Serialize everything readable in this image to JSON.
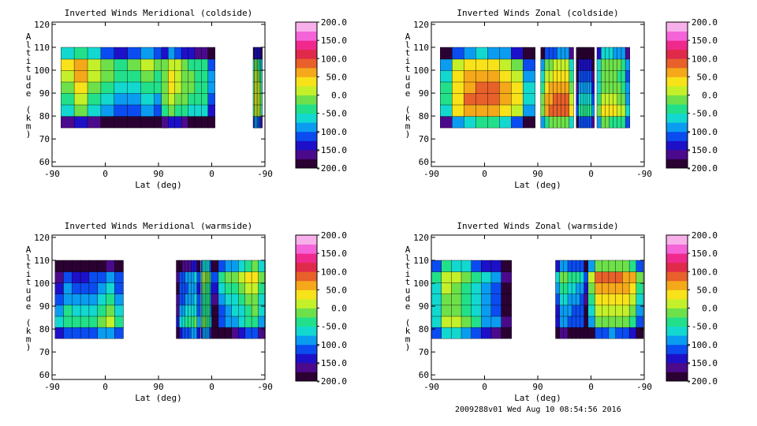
{
  "chart_data": [
    {
      "type": "heatmap",
      "title": "Inverted Winds Meridional (coldside)",
      "xlabel": "Lat (deg)",
      "ylabel": "Altitude (km)",
      "xticklabels": [
        "-90",
        "0",
        "90",
        "0",
        "-90"
      ],
      "yticks": [
        60,
        70,
        80,
        90,
        100,
        110,
        120
      ],
      "ylim": [
        58,
        121
      ],
      "colorbar_ticks": [
        "200.0",
        "150.0",
        "100.0",
        "50.0",
        "0.0",
        "-50.0",
        "-100.0",
        "-150.0",
        "-200.0"
      ],
      "colorbar_range": [
        -200,
        200
      ],
      "lat_segments": [
        [
          -75,
          105
        ],
        [
          95,
          185
        ],
        [
          250,
          265
        ]
      ],
      "alt_range": [
        75,
        110
      ]
    },
    {
      "type": "heatmap",
      "title": "Inverted Winds Zonal (coldside)",
      "xlabel": "Lat (deg)",
      "ylabel": "Altitude (km)",
      "xticklabels": [
        "-90",
        "0",
        "90",
        "0",
        "-90"
      ],
      "yticks": [
        60,
        70,
        80,
        90,
        100,
        110,
        120
      ],
      "ylim": [
        58,
        121
      ],
      "colorbar_ticks": [
        "200.0",
        "150.0",
        "100.0",
        "50.0",
        "0.0",
        "-50.0",
        "-100.0",
        "-150.0",
        "-200.0"
      ],
      "colorbar_range": [
        -200,
        200
      ],
      "lat_segments": [
        [
          -75,
          85
        ],
        [
          95,
          150
        ],
        [
          155,
          185
        ],
        [
          190,
          245
        ]
      ],
      "alt_range": [
        75,
        110
      ]
    },
    {
      "type": "heatmap",
      "title": "Inverted Winds Meridional (warmside)",
      "xlabel": "Lat (deg)",
      "ylabel": "Altitude (km)",
      "xticklabels": [
        "-90",
        "0",
        "90",
        "0",
        "-90"
      ],
      "yticks": [
        60,
        70,
        80,
        90,
        100,
        110,
        120
      ],
      "ylim": [
        58,
        121
      ],
      "colorbar_ticks": [
        "200.0",
        "150.0",
        "100.0",
        "50.0",
        "0.0",
        "-50.0",
        "-100.0",
        "-150.0",
        "-200.0"
      ],
      "colorbar_range": [
        -200,
        200
      ],
      "lat_segments": [
        [
          -85,
          30
        ],
        [
          120,
          160
        ],
        [
          162,
          180
        ],
        [
          180,
          270
        ]
      ],
      "alt_range": [
        76,
        110
      ]
    },
    {
      "type": "heatmap",
      "title": "Inverted Winds Zonal (warmside)",
      "xlabel": "Lat (deg)",
      "ylabel": "Altitude (km)",
      "xticklabels": [
        "-90",
        "0",
        "90",
        "0",
        "-90"
      ],
      "yticks": [
        60,
        70,
        80,
        90,
        100,
        110,
        120
      ],
      "ylim": [
        58,
        121
      ],
      "colorbar_ticks": [
        "200.0",
        "150.0",
        "100.0",
        "50.0",
        "0.0",
        "-50.0",
        "-100.0",
        "-150.0",
        "-200.0"
      ],
      "colorbar_range": [
        -200,
        200
      ],
      "lat_segments": [
        [
          -90,
          45
        ],
        [
          120,
          175
        ],
        [
          175,
          268
        ]
      ],
      "alt_range": [
        76,
        110
      ]
    }
  ],
  "footer": "2009288v01 Wed Aug 10 08:54:56 2016",
  "colorbar_colors": [
    "#2b0033",
    "#4b0a8c",
    "#1d10c8",
    "#0a4cf0",
    "#0a9cf0",
    "#12d8d0",
    "#22e08a",
    "#6ee04a",
    "#c4f02a",
    "#f8e21a",
    "#f4a81a",
    "#e8602a",
    "#e02a4a",
    "#f02a8c",
    "#f464d8",
    "#f8b0ea"
  ]
}
